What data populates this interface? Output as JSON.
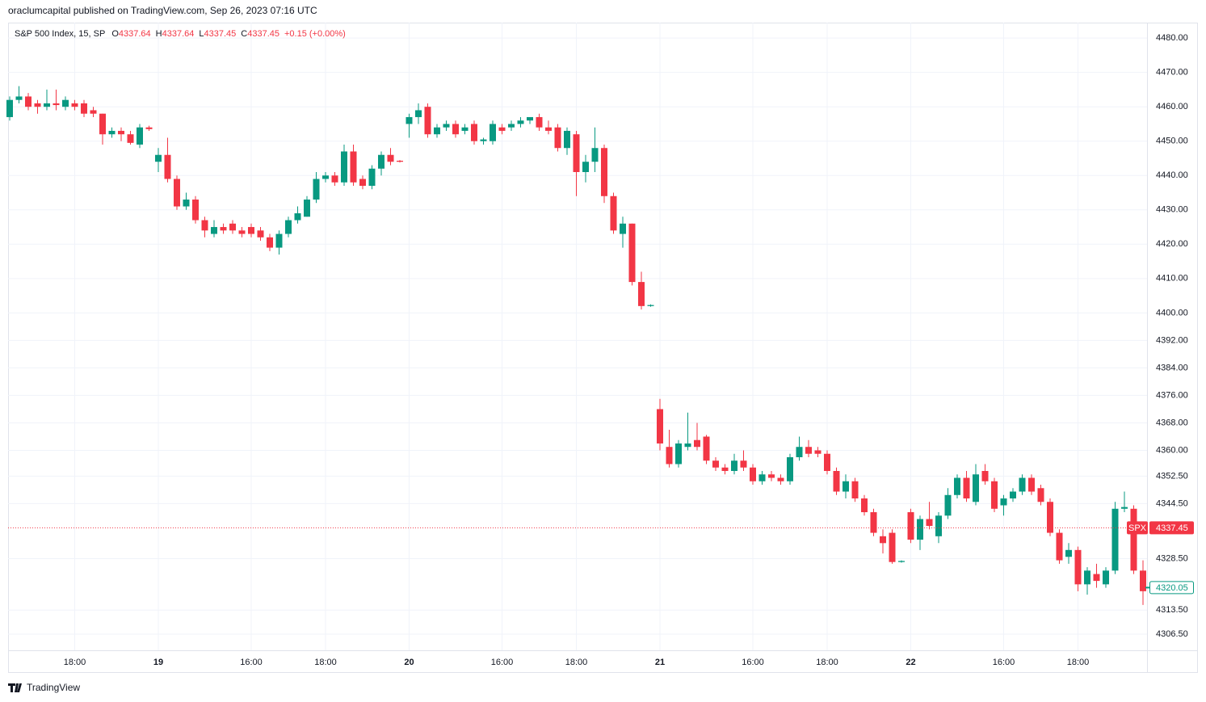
{
  "header": {
    "published": "oraclumcapital published on TradingView.com, Sep 26, 2023 07:16 UTC"
  },
  "legend": {
    "symbol": "S&P 500 Index, 15, SP",
    "items": [
      {
        "label": "O",
        "value": 4337.64
      },
      {
        "label": "H",
        "value": 4337.64
      },
      {
        "label": "L",
        "value": 4337.45
      },
      {
        "label": "C",
        "value": 4337.45
      }
    ],
    "change": "+0.15 (+0.00%)"
  },
  "footer": {
    "brand": "TradingView"
  },
  "chart_data": {
    "type": "candlestick",
    "up_color": "#089981",
    "down_color": "#f23645",
    "grid": true,
    "categories": [
      null,
      null,
      null,
      null,
      null,
      null,
      null,
      "18:00",
      null,
      null,
      null,
      null,
      null,
      null,
      null,
      null,
      "19",
      null,
      null,
      null,
      null,
      null,
      null,
      null,
      null,
      null,
      "16:00",
      null,
      null,
      null,
      null,
      null,
      null,
      null,
      "18:00",
      null,
      null,
      null,
      null,
      null,
      null,
      null,
      null,
      "20",
      null,
      null,
      null,
      null,
      null,
      null,
      null,
      null,
      null,
      "16:00",
      null,
      null,
      null,
      null,
      null,
      null,
      null,
      "18:00",
      null,
      null,
      null,
      null,
      null,
      null,
      null,
      null,
      "21",
      null,
      null,
      null,
      null,
      null,
      null,
      null,
      null,
      null,
      "16:00",
      null,
      null,
      null,
      null,
      null,
      null,
      null,
      "18:00",
      null,
      null,
      null,
      null,
      null,
      null,
      null,
      null,
      "22",
      null,
      null,
      null,
      null,
      null,
      null,
      null,
      null,
      null,
      "16:00",
      null,
      null,
      null,
      null,
      null,
      null,
      null,
      "18:00",
      null,
      null,
      null,
      null,
      null,
      null,
      null
    ],
    "open": [
      4457,
      4462,
      4463,
      4461,
      4460,
      4461,
      4460,
      4461,
      4461,
      4459,
      4458,
      4452,
      4453,
      4452,
      4449,
      4454,
      4444,
      4446,
      4439,
      4431,
      4433,
      4427,
      4423,
      4425,
      4426,
      4424,
      4425,
      4424,
      4422,
      4419,
      4423,
      4427,
      4428,
      4433,
      4439,
      4440,
      4438,
      4447,
      4439,
      4437,
      4442,
      4446,
      4444.3,
      4455,
      4457,
      4460,
      4452,
      4454,
      4455,
      4453,
      4455,
      4450,
      4450,
      4454,
      4454,
      4455,
      4456,
      4457,
      4454,
      4454,
      4448,
      4452,
      4441,
      4444,
      4448,
      4434,
      4423,
      4426,
      4409,
      4402,
      4372,
      4361,
      4356,
      4361,
      4363,
      4364,
      4357,
      4355,
      4354,
      4357,
      4355,
      4351,
      4353,
      4352,
      4351,
      4358,
      4361,
      4360,
      4359,
      4354,
      4348,
      4351,
      4346,
      4342,
      4335,
      4336,
      4327.5,
      4342,
      4334,
      4340,
      4335,
      4341,
      4347,
      4352,
      4345,
      4354,
      4351,
      4344,
      4346,
      4348,
      4352,
      4349,
      4345,
      4336,
      4329,
      4331,
      4321,
      4324,
      4321,
      4325,
      4343,
      4343,
      4325
    ],
    "high": [
      4463,
      4466,
      4464,
      4462,
      4465,
      4465,
      4463,
      4462,
      4462,
      4460,
      4458,
      4454,
      4454,
      4453,
      4455,
      4454.5,
      4448,
      4451,
      4440,
      4435,
      4434,
      4428,
      4427,
      4426,
      4427,
      4425,
      4426,
      4425,
      4423,
      4424,
      4428,
      4431,
      4434,
      4441,
      4441,
      4441,
      4449,
      4449,
      4440,
      4443,
      4447,
      4448,
      4444.5,
      4458,
      4461,
      4461,
      4455,
      4456,
      4456,
      4455,
      4456,
      4451,
      4456,
      4455,
      4456,
      4457,
      4457,
      4458,
      4456,
      4455,
      4454,
      4453,
      4446,
      4454,
      4449,
      4435,
      4428,
      4426,
      4412,
      4402.5,
      4375,
      4366,
      4363,
      4371,
      4368,
      4364.5,
      4358,
      4356,
      4359,
      4360,
      4356,
      4354,
      4354,
      4353,
      4359,
      4364,
      4363,
      4361,
      4360,
      4355,
      4353,
      4352,
      4347,
      4343,
      4337,
      4337,
      4328,
      4343,
      4341,
      4345,
      4342,
      4349,
      4353,
      4354,
      4356,
      4356,
      4352,
      4347,
      4349,
      4353,
      4353,
      4350,
      4346,
      4337,
      4333,
      4332,
      4326,
      4327,
      4326,
      4345,
      4348,
      4344,
      4328
    ],
    "low": [
      4456,
      4461,
      4459,
      4458,
      4459,
      4459,
      4459,
      4459,
      4457,
      4457,
      4449,
      4451,
      4450,
      4449,
      4448,
      4453,
      4441,
      4438,
      4430,
      4430,
      4426,
      4422,
      4422,
      4423,
      4423,
      4422,
      4422,
      4421,
      4418,
      4417,
      4422,
      4426,
      4428,
      4432,
      4438,
      4437,
      4437,
      4437,
      4436,
      4436,
      4440,
      4443,
      4443.8,
      4451,
      4455,
      4451,
      4451,
      4453,
      4451,
      4452,
      4449,
      4449,
      4449,
      4452,
      4453,
      4454,
      4455,
      4453,
      4452,
      4447,
      4446,
      4434,
      4438,
      4441,
      4432,
      4423,
      4419,
      4408,
      4401,
      4401.8,
      4360,
      4355,
      4355,
      4360,
      4360,
      4356,
      4354,
      4353,
      4353,
      4354,
      4350,
      4350,
      4351,
      4350,
      4350,
      4357,
      4358,
      4358,
      4353,
      4347,
      4346,
      4345,
      4341,
      4335,
      4330,
      4327,
      4327.3,
      4333,
      4331,
      4337,
      4333,
      4340,
      4346,
      4345,
      4344,
      4350,
      4342,
      4341,
      4345,
      4347,
      4347,
      4344,
      4335,
      4327,
      4327,
      4319,
      4318,
      4320,
      4320,
      4324,
      4342,
      4324,
      4315
    ],
    "close": [
      4462,
      4463,
      4460,
      4460,
      4461,
      4460.5,
      4462,
      4460,
      4458,
      4458,
      4452,
      4453,
      4452,
      4449.5,
      4454,
      4453.5,
      4446,
      4439,
      4431,
      4433,
      4427,
      4424,
      4425,
      4424,
      4424,
      4423,
      4423,
      4422,
      4419,
      4423,
      4427,
      4429,
      4433,
      4439,
      4440,
      4438,
      4447,
      4438,
      4437,
      4442,
      4446,
      4444,
      4444,
      4457,
      4459,
      4452,
      4454,
      4455,
      4452,
      4454,
      4450,
      4450.5,
      4455,
      4453,
      4455,
      4456,
      4457,
      4454,
      4453,
      4448,
      4453,
      4441,
      4444,
      4448,
      4434,
      4424,
      4426,
      4409,
      4402,
      4402.3,
      4362,
      4356,
      4362,
      4362,
      4361,
      4357,
      4355,
      4354,
      4357,
      4355,
      4351,
      4353,
      4352,
      4351,
      4358,
      4361,
      4359,
      4359,
      4354,
      4348,
      4351,
      4346,
      4342,
      4336,
      4333,
      4327.5,
      4327.8,
      4334,
      4340,
      4338,
      4341,
      4347,
      4352,
      4346,
      4353,
      4351,
      4343,
      4346,
      4348,
      4352,
      4348,
      4345,
      4336,
      4328,
      4331,
      4321,
      4325,
      4322,
      4325,
      4343,
      4343.5,
      4325,
      4319
    ],
    "ylim": [
      4301.8,
      4484.5
    ],
    "yticks": [
      {
        "value": 4480,
        "label": "4480.00"
      },
      {
        "value": 4470,
        "label": "4470.00"
      },
      {
        "value": 4460,
        "label": "4460.00"
      },
      {
        "value": 4450,
        "label": "4450.00"
      },
      {
        "value": 4440,
        "label": "4440.00"
      },
      {
        "value": 4430,
        "label": "4430.00"
      },
      {
        "value": 4420,
        "label": "4420.00"
      },
      {
        "value": 4410,
        "label": "4410.00"
      },
      {
        "value": 4400,
        "label": "4400.00"
      },
      {
        "value": 4392,
        "label": "4392.00"
      },
      {
        "value": 4384,
        "label": "4384.00"
      },
      {
        "value": 4376,
        "label": "4376.00"
      },
      {
        "value": 4368,
        "label": "4368.00"
      },
      {
        "value": 4360,
        "label": "4360.00"
      },
      {
        "value": 4352.5,
        "label": "4352.50"
      },
      {
        "value": 4344.5,
        "label": "4344.50"
      },
      {
        "value": 4328.5,
        "label": "4328.50"
      },
      {
        "value": 4313.5,
        "label": "4313.50"
      },
      {
        "value": 4306.5,
        "label": "4306.50"
      }
    ],
    "price_lines": [
      {
        "name": "SPX",
        "value": 4337.45,
        "color": "#f23645",
        "style": "filled"
      },
      {
        "value": 4320.05,
        "color": "#089981",
        "style": "outline"
      }
    ]
  }
}
